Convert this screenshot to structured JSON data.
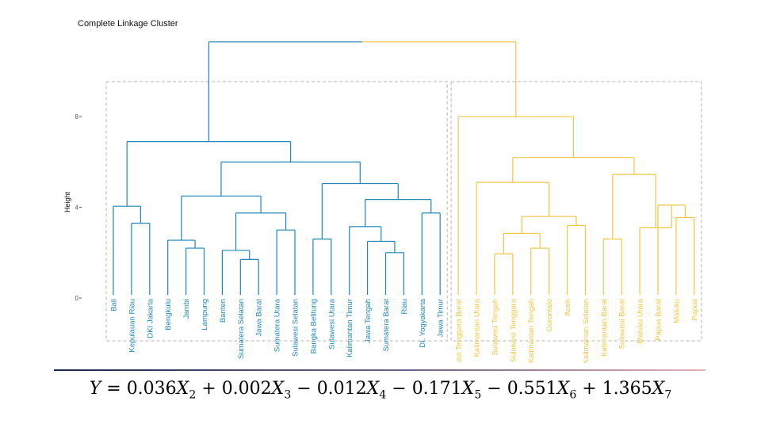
{
  "chart_data": {
    "type": "dendrogram",
    "title": "Complete Linkage Cluster",
    "ylabel": "Height",
    "y_ticks": [
      0,
      4,
      8
    ],
    "ylim": [
      0,
      11.3
    ],
    "colors": {
      "cluster1": "#1f86b9",
      "cluster2": "#f2c640",
      "box": "#b5b5b5",
      "axis_text": "#555555"
    },
    "leaves": [
      {
        "label": "Bali",
        "cluster": 1
      },
      {
        "label": "Kepulauan Riau",
        "cluster": 1
      },
      {
        "label": "DKI Jakarta",
        "cluster": 1
      },
      {
        "label": "Bengkulu",
        "cluster": 1
      },
      {
        "label": "Jambi",
        "cluster": 1
      },
      {
        "label": "Lampung",
        "cluster": 1
      },
      {
        "label": "Banten",
        "cluster": 1
      },
      {
        "label": "Sumatera Selatan",
        "cluster": 1
      },
      {
        "label": "Jawa Barat",
        "cluster": 1
      },
      {
        "label": "Sumatera Utara",
        "cluster": 1
      },
      {
        "label": "Sulawesi Selatan",
        "cluster": 1
      },
      {
        "label": "Bangka Belitung",
        "cluster": 1
      },
      {
        "label": "Sulawesi Utara",
        "cluster": 1
      },
      {
        "label": "Kalimantan Timur",
        "cluster": 1
      },
      {
        "label": "Jawa Tengah",
        "cluster": 1
      },
      {
        "label": "Sumatera Barat",
        "cluster": 1
      },
      {
        "label": "Riau",
        "cluster": 1
      },
      {
        "label": "DI. Yogyakarta",
        "cluster": 1
      },
      {
        "label": "Jawa Timur",
        "cluster": 1
      },
      {
        "label": "Nusa Tenggara Barat",
        "cluster": 2
      },
      {
        "label": "Kalimantan Utara",
        "cluster": 2
      },
      {
        "label": "Sulawesi Tengah",
        "cluster": 2
      },
      {
        "label": "Sulawesi Tenggara",
        "cluster": 2
      },
      {
        "label": "Kalimantan Tengah",
        "cluster": 2
      },
      {
        "label": "Gorontalo",
        "cluster": 2
      },
      {
        "label": "Aceh",
        "cluster": 2
      },
      {
        "label": "Kalimantan Selatan",
        "cluster": 2
      },
      {
        "label": "Kalimantan Barat",
        "cluster": 2
      },
      {
        "label": "Sulawesi Barat",
        "cluster": 2
      },
      {
        "label": "Maluku Utara",
        "cluster": 2
      },
      {
        "label": "Papua Barat",
        "cluster": 2
      },
      {
        "label": "Maluku",
        "cluster": 2
      },
      {
        "label": "Papua",
        "cluster": 2
      }
    ],
    "merges": [
      {
        "id": "A1",
        "left": 7,
        "right": 8,
        "height": 1.7,
        "cluster": 1
      },
      {
        "id": "A2",
        "left": 6,
        "right": "A1",
        "height": 2.1,
        "cluster": 1
      },
      {
        "id": "A3",
        "left": 9,
        "right": 10,
        "height": 3.0,
        "cluster": 1
      },
      {
        "id": "A4",
        "left": "A2",
        "right": "A3",
        "height": 3.75,
        "cluster": 1
      },
      {
        "id": "A5",
        "left": 4,
        "right": 5,
        "height": 2.2,
        "cluster": 1
      },
      {
        "id": "A6",
        "left": 3,
        "right": "A5",
        "height": 2.55,
        "cluster": 1
      },
      {
        "id": "A7",
        "left": "A6",
        "right": "A4",
        "height": 4.5,
        "cluster": 1
      },
      {
        "id": "A8",
        "left": 15,
        "right": 16,
        "height": 2.0,
        "cluster": 1
      },
      {
        "id": "A9",
        "left": 14,
        "right": "A8",
        "height": 2.5,
        "cluster": 1
      },
      {
        "id": "A10",
        "left": 13,
        "right": "A9",
        "height": 3.15,
        "cluster": 1
      },
      {
        "id": "A11",
        "left": 17,
        "right": 18,
        "height": 3.75,
        "cluster": 1
      },
      {
        "id": "A12",
        "left": "A10",
        "right": "A11",
        "height": 4.35,
        "cluster": 1
      },
      {
        "id": "A13",
        "left": 11,
        "right": 12,
        "height": 2.6,
        "cluster": 1
      },
      {
        "id": "A14",
        "left": "A13",
        "right": "A12",
        "height": 5.05,
        "cluster": 1
      },
      {
        "id": "A15",
        "left": "A7",
        "right": "A14",
        "height": 6.0,
        "cluster": 1
      },
      {
        "id": "A16",
        "left": 1,
        "right": 2,
        "height": 3.3,
        "cluster": 1
      },
      {
        "id": "A17",
        "left": 0,
        "right": "A16",
        "height": 4.05,
        "cluster": 1
      },
      {
        "id": "A18",
        "left": "A17",
        "right": "A15",
        "height": 6.9,
        "cluster": 1
      },
      {
        "id": "B1",
        "left": 21,
        "right": 22,
        "height": 1.95,
        "cluster": 2
      },
      {
        "id": "B2",
        "left": 23,
        "right": 24,
        "height": 2.2,
        "cluster": 2
      },
      {
        "id": "B3",
        "left": "B1",
        "right": "B2",
        "height": 2.85,
        "cluster": 2
      },
      {
        "id": "B4",
        "left": 25,
        "right": 26,
        "height": 3.2,
        "cluster": 2
      },
      {
        "id": "B5",
        "left": "B3",
        "right": "B4",
        "height": 3.6,
        "cluster": 2
      },
      {
        "id": "B6",
        "left": 20,
        "right": "B5",
        "height": 5.1,
        "cluster": 2
      },
      {
        "id": "B7",
        "left": 31,
        "right": 32,
        "height": 3.55,
        "cluster": 2
      },
      {
        "id": "B8",
        "left": 30,
        "right": "B7",
        "height": 4.1,
        "cluster": 2
      },
      {
        "id": "B9",
        "left": 29,
        "right": "B8",
        "height": 3.1,
        "cluster": 2
      },
      {
        "id": "B10",
        "left": 27,
        "right": 28,
        "height": 2.6,
        "cluster": 2
      },
      {
        "id": "B11",
        "left": "B10",
        "right": "B9",
        "height": 5.45,
        "cluster": 2
      },
      {
        "id": "B12",
        "left": "B6",
        "right": "B11",
        "height": 6.2,
        "cluster": 2
      },
      {
        "id": "B13",
        "left": 19,
        "right": "B12",
        "height": 8.0,
        "cluster": 2
      },
      {
        "id": "ROOT",
        "left": "A18",
        "right": "B13",
        "height": 11.3,
        "cluster": 0
      }
    ],
    "cluster_boxes": [
      {
        "cluster": 1,
        "from_leaf": 0,
        "to_leaf": 18
      },
      {
        "cluster": 2,
        "from_leaf": 19,
        "to_leaf": 32
      }
    ]
  },
  "equation": {
    "lhs": "Y",
    "terms": [
      {
        "sign": "",
        "coef": "0.036",
        "var": "X",
        "sub": "2"
      },
      {
        "sign": "+",
        "coef": "0.002",
        "var": "X",
        "sub": "3"
      },
      {
        "sign": "−",
        "coef": "0.012",
        "var": "X",
        "sub": "4"
      },
      {
        "sign": "−",
        "coef": "0.171",
        "var": "X",
        "sub": "5"
      },
      {
        "sign": "−",
        "coef": "0.551",
        "var": "X",
        "sub": "6"
      },
      {
        "sign": "+",
        "coef": "1.365",
        "var": "X",
        "sub": "7"
      }
    ]
  }
}
